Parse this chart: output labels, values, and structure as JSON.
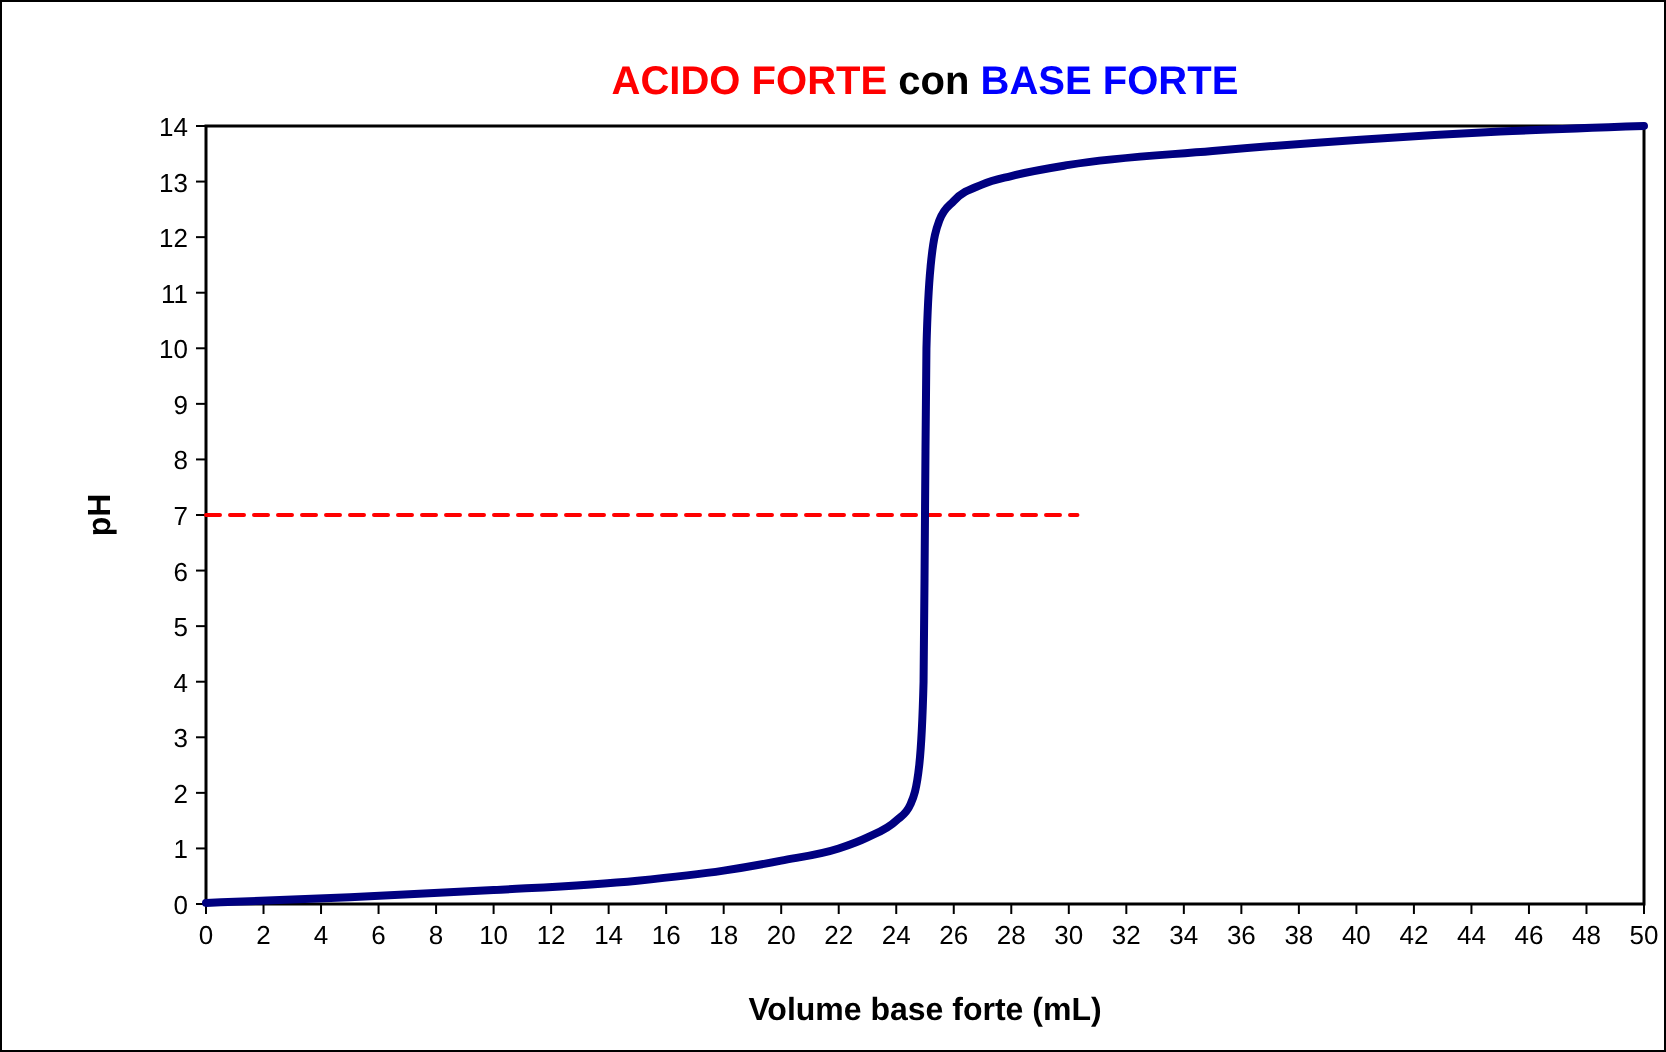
{
  "chart_data": {
    "type": "line",
    "title": "ACIDO FORTE con BASE FORTE",
    "xlabel": "Volume base forte (mL)",
    "ylabel": "pH",
    "xlim": [
      0,
      50
    ],
    "xticks": [
      0,
      2,
      4,
      6,
      8,
      10,
      12,
      14,
      16,
      18,
      20,
      22,
      24,
      26,
      28,
      30,
      32,
      34,
      36,
      38,
      40,
      42,
      44,
      46,
      48,
      50
    ],
    "ylim": [
      0,
      14
    ],
    "yticks": [
      0,
      1,
      2,
      3,
      4,
      5,
      6,
      7,
      8,
      9,
      10,
      11,
      12,
      13,
      14
    ],
    "grid": false,
    "marker": "none",
    "series": [
      {
        "color": "#000080",
        "line_style": "solid",
        "x": [
          0,
          5,
          10,
          15,
          18,
          20,
          22,
          23,
          24,
          24.5,
          24.8,
          24.95,
          25,
          25.05,
          25.2,
          25.5,
          26,
          27,
          28,
          30,
          35,
          40,
          45,
          50
        ],
        "values": [
          0.02,
          0.12,
          0.25,
          0.42,
          0.6,
          0.78,
          1.0,
          1.2,
          1.5,
          1.8,
          2.5,
          4,
          7,
          10,
          11.5,
          12.3,
          12.65,
          12.95,
          13.1,
          13.3,
          13.55,
          13.75,
          13.9,
          14.0
        ]
      },
      {
        "color": "#ff0000",
        "line_style": "dashed",
        "x": [
          0,
          30.3
        ],
        "values": [
          7,
          7
        ]
      }
    ]
  }
}
